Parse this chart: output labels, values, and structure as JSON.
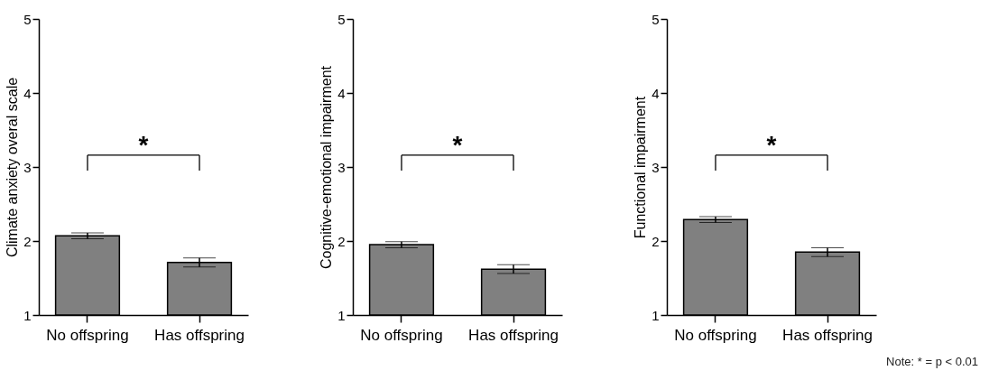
{
  "chart_data": [
    {
      "type": "bar",
      "ylabel": "Climate anxiety overal scale",
      "categories": [
        "No offspring",
        "Has offspring"
      ],
      "values": [
        2.07,
        1.71
      ],
      "errors": [
        0.04,
        0.06
      ],
      "color": "#808080",
      "ylim": [
        1,
        5
      ],
      "yticks": [
        1,
        2,
        3,
        4,
        5
      ],
      "annotations": [
        "*"
      ]
    },
    {
      "type": "bar",
      "ylabel": "Cognitive-emotional impairment",
      "categories": [
        "No offspring",
        "Has offspring"
      ],
      "values": [
        1.95,
        1.62
      ],
      "errors": [
        0.04,
        0.06
      ],
      "color": "#808080",
      "ylim": [
        1,
        5
      ],
      "yticks": [
        1,
        2,
        3,
        4,
        5
      ],
      "annotations": [
        "*"
      ]
    },
    {
      "type": "bar",
      "ylabel": "Functional impairment",
      "categories": [
        "No offspring",
        "Has offspring"
      ],
      "values": [
        2.29,
        1.85
      ],
      "errors": [
        0.04,
        0.06
      ],
      "color": "#808080",
      "ylim": [
        1,
        5
      ],
      "yticks": [
        1,
        2,
        3,
        4,
        5
      ],
      "annotations": [
        "*",
        "Note: * = p < 0.01"
      ]
    }
  ]
}
